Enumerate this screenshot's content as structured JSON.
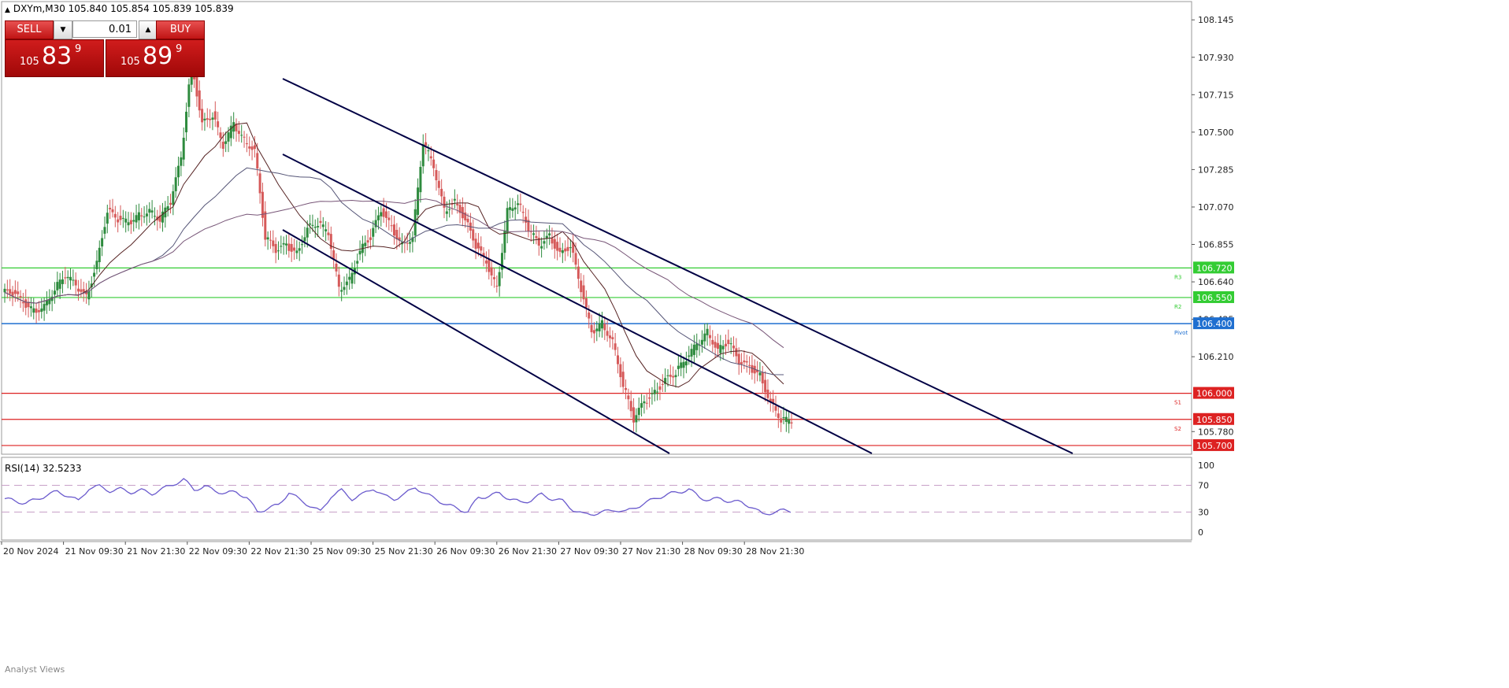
{
  "chart_header": {
    "symbol_tf": "DXYm,M30",
    "ohlc": "105.840 105.854 105.839 105.839"
  },
  "trade_panel": {
    "sell_label": "SELL",
    "buy_label": "BUY",
    "volume": "0.01",
    "sell_price": {
      "prefix": "105",
      "big": "83",
      "sup": "9"
    },
    "buy_price": {
      "prefix": "105",
      "big": "89",
      "sup": "9"
    }
  },
  "price_axis_ticks": [
    "108.145",
    "107.930",
    "107.715",
    "107.500",
    "107.285",
    "107.070",
    "106.855",
    "106.640",
    "106.425",
    "106.210",
    "105.780"
  ],
  "horizontal_levels": [
    {
      "value": "106.720",
      "tag": "R3",
      "color": "#33cc33"
    },
    {
      "value": "106.550",
      "tag": "R2",
      "color": "#33cc33"
    },
    {
      "value": "106.400",
      "tag": "Pivot",
      "color": "#1f6fd0"
    },
    {
      "value": "106.000",
      "tag": "S1",
      "color": "#dd2222"
    },
    {
      "value": "105.850",
      "tag": "S2",
      "color": "#dd2222"
    },
    {
      "value": "105.700",
      "tag": "",
      "color": "#dd2222"
    }
  ],
  "rsi": {
    "title": "RSI(14) 32.5233",
    "axis_ticks": [
      "100",
      "70",
      "30",
      "0"
    ]
  },
  "time_axis": [
    "20 Nov 2024",
    "21 Nov 09:30",
    "21 Nov 21:30",
    "22 Nov 09:30",
    "22 Nov 21:30",
    "25 Nov 09:30",
    "25 Nov 21:30",
    "26 Nov 09:30",
    "26 Nov 21:30",
    "27 Nov 09:30",
    "27 Nov 21:30",
    "28 Nov 09:30",
    "28 Nov 21:30"
  ],
  "footer_text": "Analyst Views",
  "colors": {
    "bull": "#2e8b3e",
    "bear": "#d65a5a",
    "channel": "#000044",
    "rsi_line": "#6a5acd"
  },
  "chart_data": {
    "type": "candlestick",
    "title": "DXYm,M30",
    "ylim": [
      105.7,
      108.25
    ],
    "close_path": [
      106.58,
      106.52,
      106.47,
      106.5,
      106.6,
      106.68,
      106.62,
      106.55,
      106.75,
      107.05,
      107.0,
      106.98,
      107.02,
      107.05,
      107.0,
      107.1,
      107.35,
      107.9,
      107.55,
      107.6,
      107.42,
      107.55,
      107.45,
      107.4,
      106.9,
      106.82,
      106.85,
      106.8,
      106.95,
      106.98,
      106.92,
      106.6,
      106.65,
      106.82,
      106.9,
      107.05,
      106.95,
      106.85,
      106.9,
      107.45,
      107.3,
      107.05,
      107.1,
      107.0,
      106.85,
      106.75,
      106.6,
      107.05,
      107.1,
      106.95,
      106.85,
      106.9,
      106.8,
      106.85,
      106.6,
      106.35,
      106.4,
      106.3,
      106.05,
      105.85,
      105.95,
      106.0,
      106.08,
      106.12,
      106.2,
      106.28,
      106.35,
      106.25,
      106.3,
      106.18,
      106.15,
      106.1,
      105.95,
      105.85,
      105.84
    ],
    "rsi_path": [
      50,
      46,
      44,
      48,
      56,
      60,
      55,
      46,
      66,
      68,
      62,
      64,
      60,
      62,
      58,
      64,
      72,
      78,
      64,
      68,
      62,
      58,
      60,
      52,
      30,
      36,
      40,
      60,
      48,
      40,
      30,
      54,
      62,
      50,
      56,
      66,
      54,
      50,
      56,
      68,
      56,
      50,
      40,
      36,
      30,
      52,
      54,
      58,
      50,
      44,
      48,
      56,
      50,
      46,
      34,
      26,
      28,
      30,
      34,
      30,
      38,
      44,
      52,
      56,
      60,
      64,
      52,
      48,
      50,
      46,
      44,
      38,
      26,
      30,
      32
    ]
  }
}
